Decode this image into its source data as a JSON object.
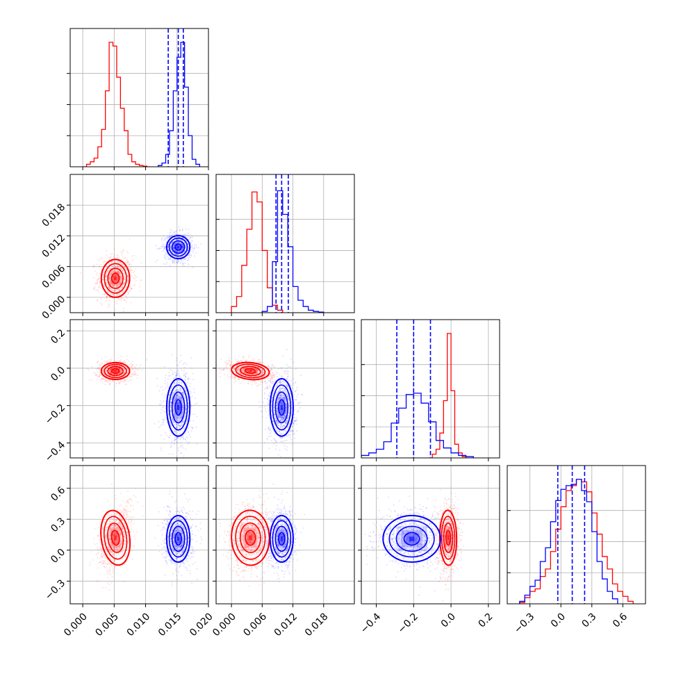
{
  "chart_data": {
    "type": "corner",
    "colors": {
      "series_a": "#ff0000",
      "series_b": "#0000ff"
    },
    "grid": true,
    "parameters": [
      {
        "range": [
          -0.002,
          0.02
        ],
        "ticks": [
          "0.000",
          "0.005",
          "0.010",
          "0.015",
          "0.020"
        ],
        "tick_values": [
          0,
          0.005,
          0.01,
          0.015,
          0.02
        ]
      },
      {
        "range": [
          -0.003,
          0.024
        ],
        "ticks": [
          "0.000",
          "0.006",
          "0.012",
          "0.018"
        ],
        "tick_values": [
          0,
          0.006,
          0.012,
          0.018
        ]
      },
      {
        "range": [
          -0.48,
          0.26
        ],
        "ticks": [
          "−0.4",
          "−0.2",
          "0.0",
          "0.2"
        ],
        "tick_values": [
          -0.4,
          -0.2,
          0,
          0.2
        ]
      },
      {
        "range": [
          -0.52,
          0.82
        ],
        "ticks": [
          "−0.3",
          "0.0",
          "0.3",
          "0.6"
        ],
        "tick_values": [
          -0.3,
          0,
          0.3,
          0.6
        ]
      }
    ],
    "series": [
      {
        "color": "#ff0000",
        "means": [
          0.0052,
          0.0037,
          -0.015,
          0.12
        ],
        "stds": [
          0.0011,
          0.0018,
          0.022,
          0.13
        ],
        "marginals": [
          {
            "edges": [
              0.0,
              0.0006,
              0.0012,
              0.0018,
              0.0024,
              0.003,
              0.0036,
              0.0042,
              0.0048,
              0.0054,
              0.006,
              0.0066,
              0.0072,
              0.0078,
              0.0084,
              0.009,
              0.0096,
              0.0102,
              0.0108
            ],
            "heights": [
              0.0,
              0.02,
              0.04,
              0.07,
              0.16,
              0.3,
              0.61,
              1.0,
              0.97,
              0.72,
              0.47,
              0.29,
              0.1,
              0.04,
              0.02,
              0.01,
              0.005,
              0.0
            ]
          },
          {
            "edges": [
              0.0,
              0.001,
              0.002,
              0.003,
              0.004,
              0.005,
              0.006,
              0.007,
              0.008,
              0.009,
              0.01
            ],
            "heights": [
              0.05,
              0.13,
              0.38,
              0.67,
              0.97,
              0.89,
              0.5,
              0.2,
              0.06,
              0.02
            ]
          },
          {
            "edges": [
              -0.1,
              -0.08,
              -0.06,
              -0.04,
              -0.02,
              0.0,
              0.02,
              0.04,
              0.06,
              0.08
            ],
            "heights": [
              0.03,
              0.07,
              0.2,
              0.46,
              1.0,
              0.54,
              0.11,
              0.04,
              0.01
            ]
          },
          {
            "edges": [
              -0.4,
              -0.35,
              -0.3,
              -0.25,
              -0.2,
              -0.15,
              -0.1,
              -0.05,
              0.0,
              0.05,
              0.1,
              0.15,
              0.2,
              0.25,
              0.3,
              0.35,
              0.4,
              0.45,
              0.5,
              0.55,
              0.6,
              0.65,
              0.7
            ],
            "heights": [
              0.01,
              0.05,
              0.1,
              0.12,
              0.22,
              0.28,
              0.42,
              0.6,
              0.78,
              0.91,
              0.95,
              1.0,
              0.98,
              0.9,
              0.73,
              0.56,
              0.38,
              0.28,
              0.16,
              0.1,
              0.06,
              0.02
            ]
          }
        ]
      },
      {
        "color": "#0000ff",
        "means": [
          0.0152,
          0.0098,
          -0.21,
          0.11
        ],
        "stds": [
          0.0009,
          0.0011,
          0.075,
          0.11
        ],
        "quantiles": [
          [
            0.0136,
            0.0152,
            0.016
          ],
          [
            0.0087,
            0.0098,
            0.0111
          ],
          [
            -0.29,
            -0.2,
            -0.11
          ],
          [
            -0.03,
            0.11,
            0.23
          ]
        ],
        "marginals": [
          {
            "edges": [
              0.012,
              0.0126,
              0.0132,
              0.0138,
              0.0144,
              0.015,
              0.0156,
              0.0162,
              0.0168,
              0.0174,
              0.018,
              0.0186
            ],
            "heights": [
              0.01,
              0.03,
              0.1,
              0.29,
              0.61,
              0.88,
              1.0,
              0.64,
              0.25,
              0.06,
              0.02
            ]
          },
          {
            "edges": [
              0.006,
              0.007,
              0.008,
              0.009,
              0.01,
              0.011,
              0.012,
              0.013,
              0.014,
              0.015,
              0.016,
              0.017,
              0.018
            ],
            "heights": [
              0.01,
              0.05,
              0.41,
              0.98,
              0.79,
              0.53,
              0.21,
              0.1,
              0.05,
              0.02,
              0.01,
              0.005
            ]
          },
          {
            "edges": [
              -0.48,
              -0.44,
              -0.4,
              -0.36,
              -0.32,
              -0.28,
              -0.24,
              -0.2,
              -0.16,
              -0.12,
              -0.08,
              -0.04,
              0.0,
              0.04,
              0.08,
              0.12
            ],
            "heights": [
              0.02,
              0.04,
              0.07,
              0.13,
              0.28,
              0.4,
              0.51,
              0.52,
              0.44,
              0.29,
              0.14,
              0.08,
              0.04,
              0.02,
              0.01
            ]
          },
          {
            "edges": [
              -0.4,
              -0.35,
              -0.3,
              -0.25,
              -0.2,
              -0.15,
              -0.1,
              -0.05,
              0.0,
              0.05,
              0.1,
              0.15,
              0.2,
              0.25,
              0.3,
              0.35,
              0.4,
              0.45,
              0.5,
              0.55
            ],
            "heights": [
              0.02,
              0.07,
              0.14,
              0.19,
              0.34,
              0.45,
              0.66,
              0.83,
              0.92,
              0.95,
              0.96,
              1.0,
              0.91,
              0.82,
              0.58,
              0.34,
              0.2,
              0.1,
              0.04
            ]
          }
        ]
      }
    ]
  }
}
